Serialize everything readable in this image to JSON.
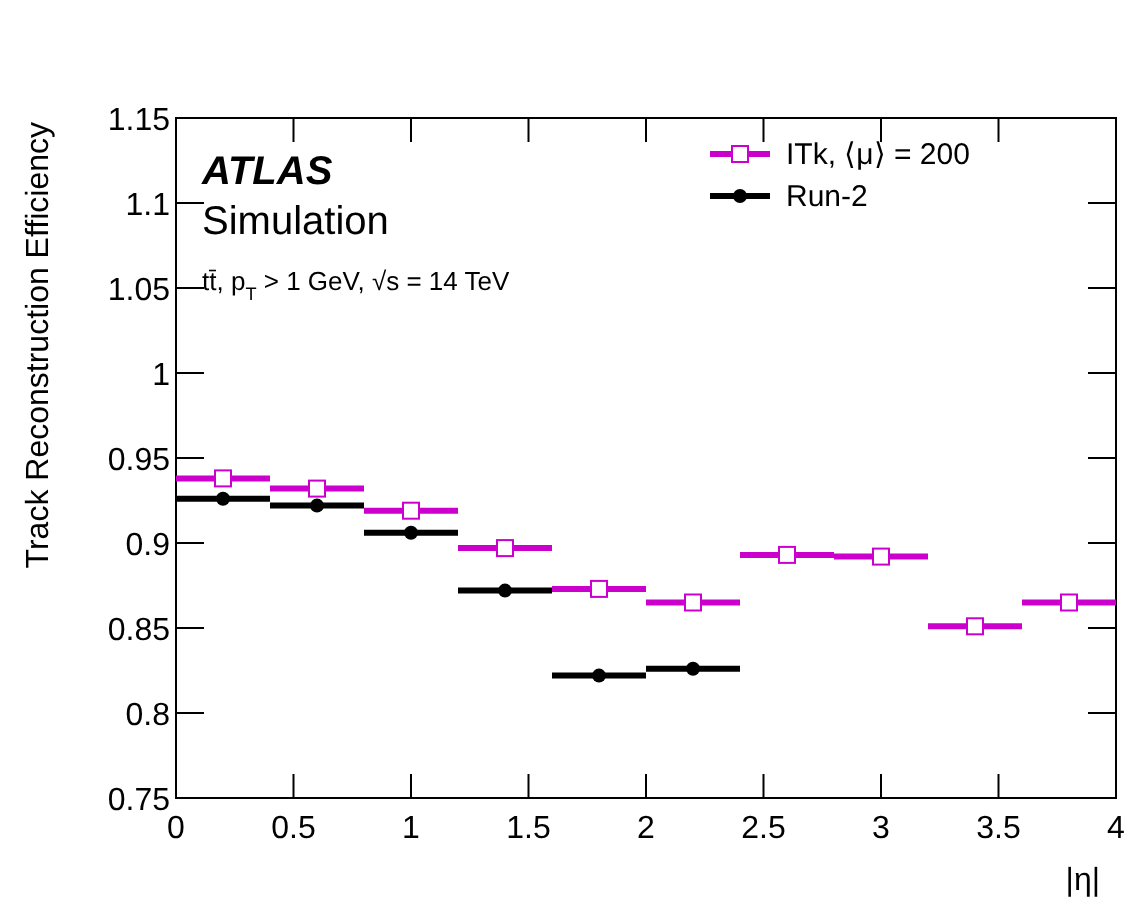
{
  "chart_data": {
    "type": "scatter",
    "ylabel": "Track Reconstruction Efficiency",
    "xlabel": "|η|",
    "annotations": [
      "ATLAS",
      "Simulation",
      "tt̄, p$_{T}$ > 1 GeV, √s = 14 TeV"
    ],
    "xlim": [
      0,
      4
    ],
    "xticks": [
      0,
      0.5,
      1,
      1.5,
      2,
      2.5,
      3,
      3.5,
      4
    ],
    "ylim": [
      0.75,
      1.15
    ],
    "yticks": [
      0.75,
      0.8,
      0.85,
      0.9,
      0.95,
      1,
      1.05,
      1.1,
      1.15
    ],
    "legend": "top right",
    "grid": false,
    "series": [
      {
        "name": "ITk, ⟨μ⟩ = 200",
        "color": "#cc00cc",
        "marker": "square",
        "x": [
          0.2,
          0.6,
          1,
          1.4,
          1.8,
          2.2,
          2.6,
          3,
          3.4,
          3.8
        ],
        "values": [
          0.938,
          0.932,
          0.919,
          0.897,
          0.873,
          0.865,
          0.893,
          0.892,
          0.851,
          0.865
        ],
        "xerrors": [
          0.2,
          0.2,
          0.2,
          0.2,
          0.2,
          0.2,
          0.2,
          0.2,
          0.2,
          0.2
        ]
      },
      {
        "name": "Run-2",
        "color": "#000000",
        "marker": "circle",
        "x": [
          0.2,
          0.6,
          1,
          1.4,
          1.8,
          2.2
        ],
        "values": [
          0.926,
          0.922,
          0.906,
          0.872,
          0.822,
          0.826
        ],
        "xerrors": [
          0.2,
          0.2,
          0.2,
          0.2,
          0.2,
          0.2
        ]
      }
    ]
  }
}
